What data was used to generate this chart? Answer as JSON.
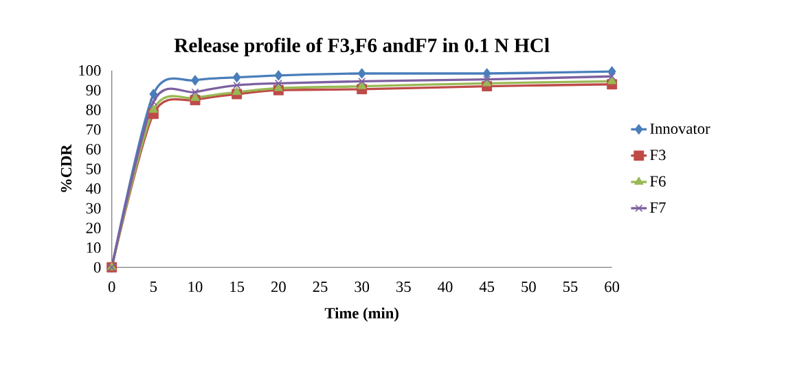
{
  "chart_data": {
    "type": "line",
    "title": "Release profile of F3,F6 andF7 in 0.1 N HCl",
    "xlabel": "Time (min)",
    "ylabel": "%CDR",
    "x": [
      0,
      5,
      10,
      15,
      20,
      30,
      45,
      60
    ],
    "series": [
      {
        "name": "Innovator",
        "color": "#4a7ebb",
        "marker": "diamond",
        "values": [
          0,
          88,
          95,
          96.5,
          97.5,
          98.5,
          98.5,
          99.5
        ]
      },
      {
        "name": "F3",
        "color": "#be4b48",
        "marker": "square",
        "values": [
          0,
          78,
          85,
          88,
          90,
          90.5,
          92,
          93
        ]
      },
      {
        "name": "F6",
        "color": "#98b954",
        "marker": "triangle",
        "values": [
          0,
          80,
          86,
          89,
          91,
          92,
          93.5,
          94.5
        ]
      },
      {
        "name": "F7",
        "color": "#7d60a0",
        "marker": "cross",
        "values": [
          0,
          84,
          89,
          92.5,
          93.5,
          94.5,
          95.5,
          97
        ]
      }
    ],
    "xlim": [
      0,
      60
    ],
    "xticks": [
      0,
      5,
      10,
      15,
      20,
      25,
      30,
      35,
      40,
      45,
      50,
      55,
      60
    ],
    "ylim": [
      0,
      100
    ],
    "yticks": [
      0,
      10,
      20,
      30,
      40,
      50,
      60,
      70,
      80,
      90,
      100
    ],
    "grid": false,
    "legend": "right",
    "line_style": "solid"
  }
}
